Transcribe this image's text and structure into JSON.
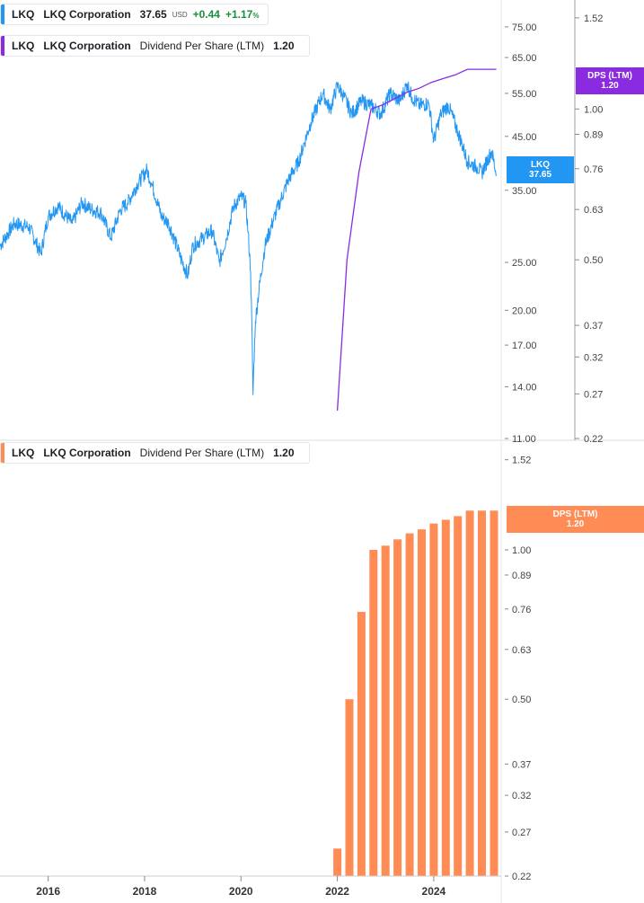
{
  "legend_price": {
    "symbol": "LKQ",
    "name": "LKQ Corporation",
    "price": "37.65",
    "currency": "USD",
    "change": "+0.44",
    "change_pct": "+1.17",
    "pct_sign": "%",
    "color": "#2196f3"
  },
  "legend_dps_top": {
    "symbol": "LKQ",
    "name": "LKQ Corporation",
    "metric": "Dividend Per Share (LTM)",
    "value": "1.20",
    "color": "#8a2be2"
  },
  "legend_dps_bottom": {
    "symbol": "LKQ",
    "name": "LKQ Corporation",
    "metric": "Dividend Per Share (LTM)",
    "value": "1.20",
    "color": "#ff8c55"
  },
  "tag_price": {
    "line1": "LKQ",
    "line2": "37.65",
    "color": "#2196f3"
  },
  "tag_dps_top": {
    "line1": "DPS (LTM)",
    "line2": "1.20",
    "color": "#8a2be2"
  },
  "tag_dps_bottom": {
    "line1": "DPS (LTM)",
    "line2": "1.20",
    "color": "#ff8c55"
  },
  "chart_data": [
    {
      "type": "line",
      "title": "LKQ Corporation price",
      "scale": "log",
      "x_range": [
        2015.0,
        2025.4
      ],
      "ylim": [
        11,
        85
      ],
      "y_ticks": [
        "75.00",
        "65.00",
        "55.00",
        "45.00",
        "35.00",
        "25.00",
        "20.00",
        "17.00",
        "14.00",
        "11.00"
      ],
      "series": [
        {
          "name": "LKQ price",
          "color": "#2196f3",
          "x": [
            2015.0,
            2015.3,
            2015.6,
            2015.85,
            2016.0,
            2016.2,
            2016.5,
            2016.7,
            2016.9,
            2017.1,
            2017.3,
            2017.5,
            2017.65,
            2017.85,
            2018.05,
            2018.15,
            2018.35,
            2018.5,
            2018.75,
            2018.9,
            2019.0,
            2019.2,
            2019.4,
            2019.55,
            2019.7,
            2019.85,
            2020.0,
            2020.1,
            2020.2,
            2020.25,
            2020.3,
            2020.5,
            2020.8,
            2021.0,
            2021.2,
            2021.45,
            2021.7,
            2021.85,
            2022.0,
            2022.1,
            2022.3,
            2022.5,
            2022.7,
            2022.9,
            2023.1,
            2023.3,
            2023.45,
            2023.55,
            2023.7,
            2023.9,
            2024.0,
            2024.15,
            2024.3,
            2024.5,
            2024.7,
            2024.9,
            2025.0,
            2025.2,
            2025.3
          ],
          "values": [
            27,
            30,
            29.5,
            26,
            31,
            32.5,
            30,
            33,
            32,
            31.5,
            28,
            32,
            33,
            36,
            38.5,
            36,
            31,
            30,
            25.5,
            23.5,
            27,
            28,
            29,
            25,
            28,
            32.5,
            34,
            33,
            24,
            13.5,
            19,
            27,
            33,
            37,
            40,
            48,
            55,
            51,
            57,
            55,
            50,
            53,
            52,
            50,
            55,
            53,
            57.5,
            54,
            52,
            52.5,
            44,
            50,
            52,
            46,
            40,
            39,
            38,
            42,
            37.65
          ]
        }
      ]
    },
    {
      "type": "line",
      "title": "Dividend Per Share (LTM) overlay",
      "scale": "log",
      "ylim": [
        0.22,
        1.65
      ],
      "y_ticks": [
        "1.52",
        "1.00",
        "0.89",
        "0.76",
        "0.63",
        "0.50",
        "0.37",
        "0.32",
        "0.27",
        "0.22"
      ],
      "series": [
        {
          "name": "DPS (LTM)",
          "color": "#8a2be2",
          "x": [
            2022.0,
            2022.2,
            2022.45,
            2022.7,
            2022.95,
            2023.2,
            2023.45,
            2023.7,
            2023.95,
            2024.2,
            2024.45,
            2024.7,
            2024.95,
            2025.2,
            2025.3
          ],
          "values": [
            0.25,
            0.5,
            0.75,
            1.0,
            1.02,
            1.05,
            1.08,
            1.1,
            1.13,
            1.15,
            1.17,
            1.2,
            1.2,
            1.2,
            1.2
          ]
        }
      ]
    },
    {
      "type": "bar",
      "title": "Dividend Per Share (LTM)",
      "scale": "log",
      "ylim": [
        0.22,
        1.65
      ],
      "y_ticks": [
        "1.52",
        "1.00",
        "0.89",
        "0.76",
        "0.63",
        "0.50",
        "0.37",
        "0.32",
        "0.27",
        "0.22"
      ],
      "x_ticks": [
        "2016",
        "2018",
        "2020",
        "2022",
        "2024"
      ],
      "series": [
        {
          "name": "DPS (LTM)",
          "color": "#ff8c55",
          "x": [
            2022.0,
            2022.25,
            2022.5,
            2022.75,
            2023.0,
            2023.25,
            2023.5,
            2023.75,
            2024.0,
            2024.25,
            2024.5,
            2024.75,
            2025.0,
            2025.25
          ],
          "values": [
            0.25,
            0.5,
            0.75,
            1.0,
            1.02,
            1.05,
            1.08,
            1.1,
            1.13,
            1.15,
            1.17,
            1.2,
            1.2,
            1.2
          ]
        }
      ]
    }
  ]
}
